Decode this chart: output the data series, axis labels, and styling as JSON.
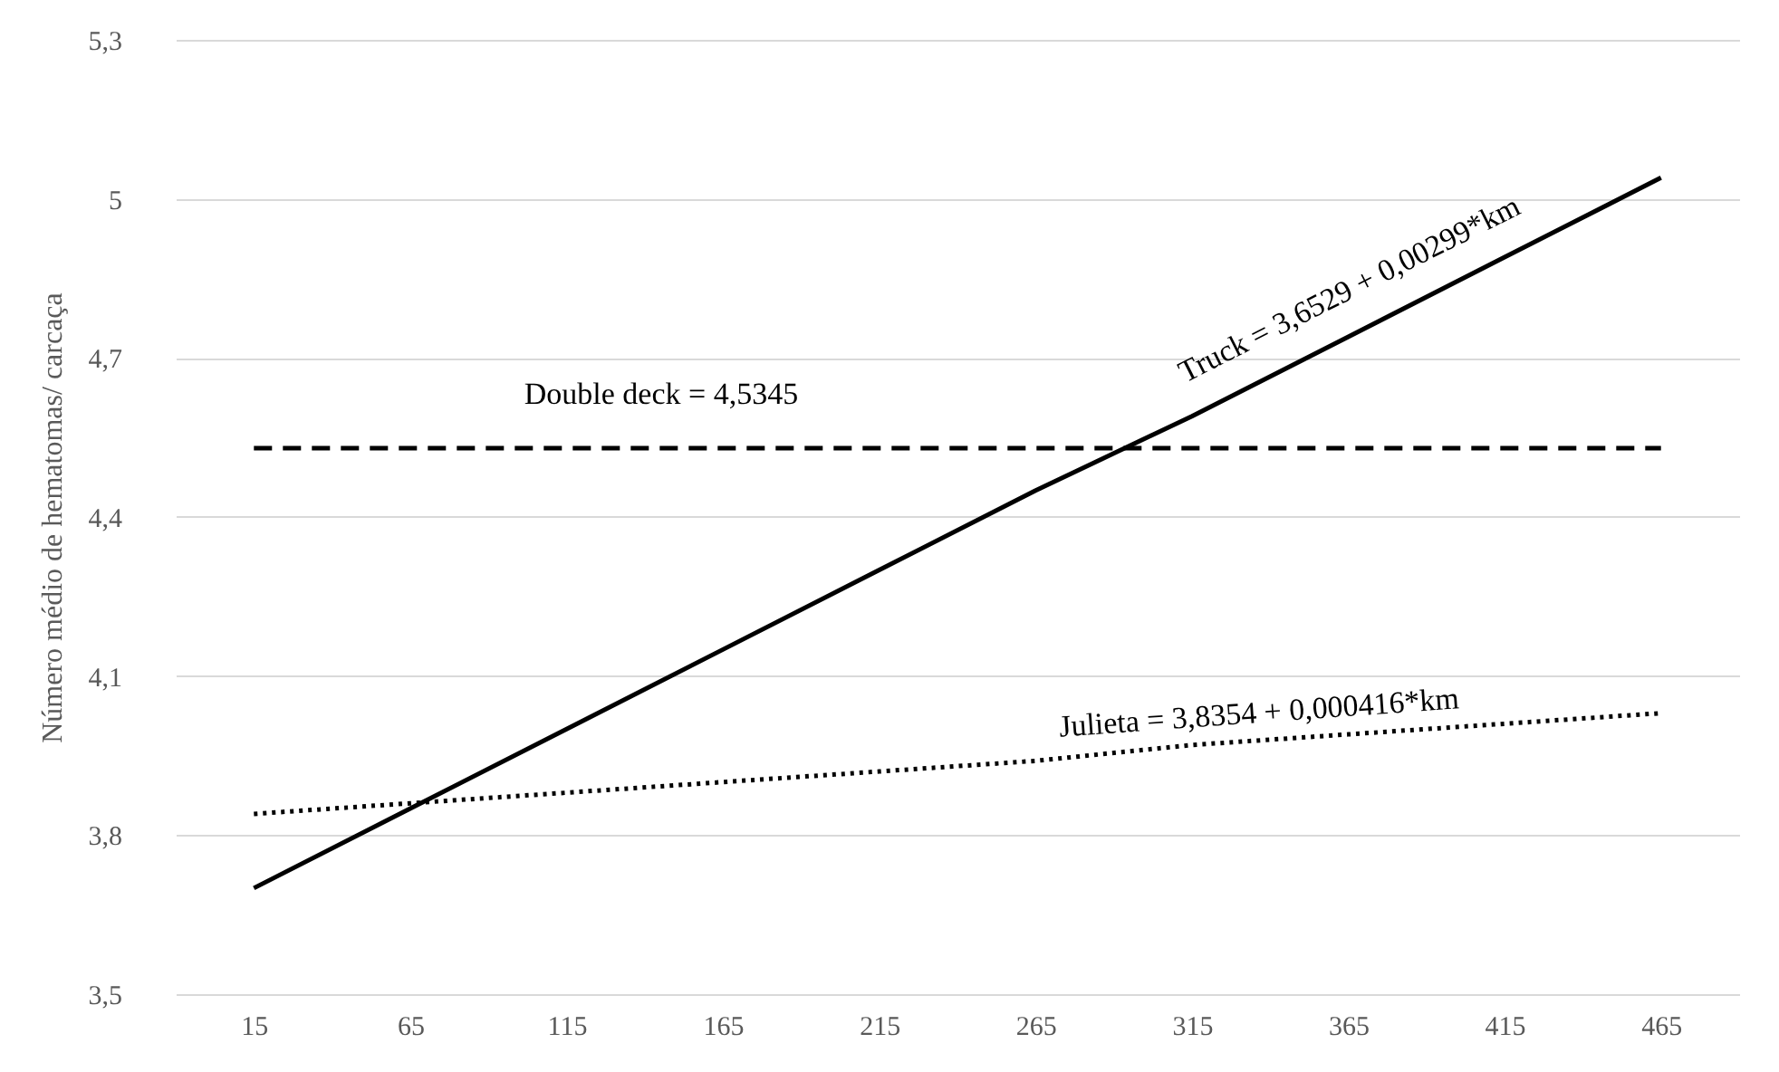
{
  "chart_data": {
    "type": "line",
    "ylabel": "Número médio de hematomas/ carcaça",
    "categories": [
      "15",
      "65",
      "115",
      "165",
      "215",
      "265",
      "315",
      "365",
      "415",
      "465"
    ],
    "series": [
      {
        "color": "#000000",
        "line_style": "dashed",
        "values": [
          4.53,
          4.53,
          4.53,
          4.53,
          4.53,
          4.53,
          4.53,
          4.53,
          4.53,
          4.53
        ]
      },
      {
        "color": "#000000",
        "line_style": "solid",
        "values": [
          3.7,
          3.85,
          4.0,
          4.15,
          4.3,
          4.45,
          4.59,
          4.74,
          4.89,
          5.04
        ]
      },
      {
        "color": "#000000",
        "line_style": "dotted",
        "values": [
          3.84,
          3.86,
          3.88,
          3.9,
          3.92,
          3.94,
          3.97,
          3.99,
          4.01,
          4.03
        ]
      }
    ],
    "ylim": [
      3.5,
      5.3
    ],
    "yticks": [
      {
        "value": 3.5,
        "label": "3,5"
      },
      {
        "value": 3.8,
        "label": "3,8"
      },
      {
        "value": 4.1,
        "label": "4,1"
      },
      {
        "value": 4.4,
        "label": "4,4"
      },
      {
        "value": 4.7,
        "label": "4,7"
      },
      {
        "value": 5,
        "label": "5"
      },
      {
        "value": 5.3,
        "label": "5,3"
      }
    ],
    "grid": "y",
    "marker": "none",
    "annotations": [
      "Double deck = 4,5345",
      "Truck = 3,6529 + 0,00299*km",
      "Julieta = 3,8354 + 0,000416*km"
    ]
  }
}
